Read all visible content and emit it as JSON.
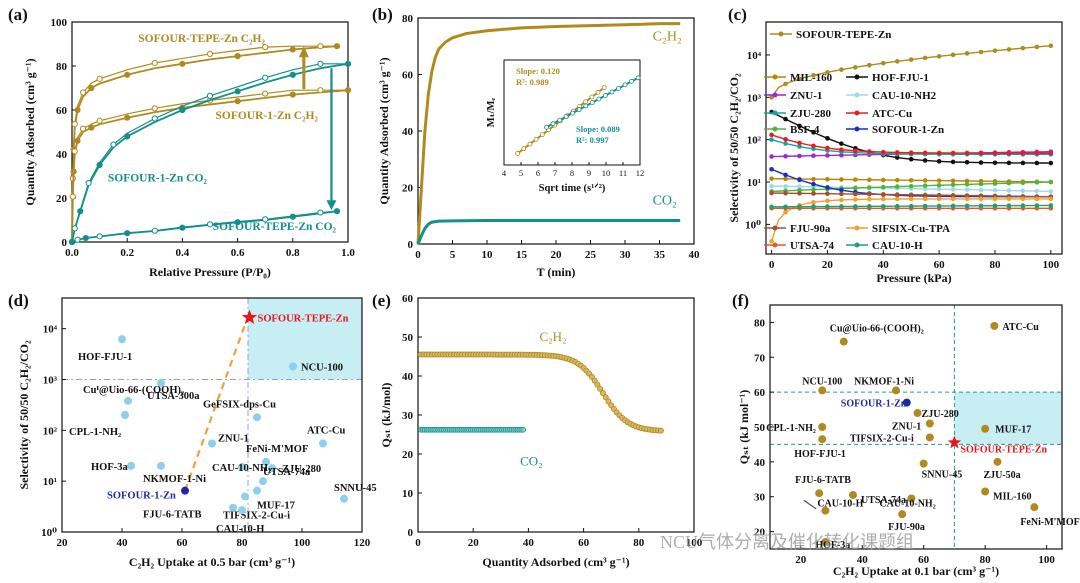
{
  "colors": {
    "gold": "#b08a1e",
    "teal": "#138f8c",
    "teal2": "#1a9c9a",
    "red": "#e8151d",
    "blue": "#1f2aa0",
    "light": "#8ccfee",
    "cyanfill": "#c6eef3"
  },
  "watermark": "NCU气体分离及催化转化课题组",
  "chart_data": [
    {
      "id": "a",
      "type": "line",
      "panel_label": "(a)",
      "xlabel": "Relative Pressure (P/P₀)",
      "ylabel": "Quantity Adsorbed (cm³ g⁻¹)",
      "xlim": [
        0,
        1
      ],
      "ylim": [
        0,
        100
      ],
      "xticks": [
        "0.0",
        "0.2",
        "0.4",
        "0.6",
        "0.8",
        "1.0"
      ],
      "yticks": [
        "0",
        "20",
        "40",
        "60",
        "80",
        "100"
      ],
      "series": [
        {
          "name": "SOFOUR-TEPE-Zn C2H2",
          "label": "SOFOUR-TEPE-Zn C₂H₂",
          "x": [
            0,
            0.003,
            0.006,
            0.01,
            0.02,
            0.04,
            0.07,
            0.1,
            0.2,
            0.3,
            0.4,
            0.5,
            0.6,
            0.7,
            0.8,
            0.9,
            0.96
          ],
          "y": [
            0,
            28,
            42,
            52,
            60,
            66,
            70,
            72,
            76,
            79,
            81,
            83,
            84.5,
            86,
            87.5,
            88.5,
            89
          ]
        },
        {
          "name": "SOFOUR-1-Zn C2H2",
          "label": "SOFOUR-1-Zn C₂H₂",
          "x": [
            0,
            0.003,
            0.006,
            0.01,
            0.02,
            0.04,
            0.07,
            0.1,
            0.2,
            0.3,
            0.4,
            0.5,
            0.6,
            0.7,
            0.8,
            0.9,
            1.0
          ],
          "y": [
            0,
            20,
            32,
            40,
            46,
            50,
            52,
            53.5,
            56.5,
            59,
            61,
            62.5,
            64,
            65.5,
            67,
            68,
            69
          ]
        },
        {
          "name": "SOFOUR-1-Zn CO2",
          "label": "SOFOUR-1-Zn CO₂",
          "x": [
            0,
            0.01,
            0.03,
            0.06,
            0.1,
            0.15,
            0.2,
            0.3,
            0.4,
            0.5,
            0.6,
            0.7,
            0.8,
            0.9,
            1.0
          ],
          "y": [
            0,
            6,
            14,
            26,
            35,
            43,
            48,
            54.5,
            60,
            64.5,
            68.5,
            72.5,
            76,
            79,
            81
          ]
        },
        {
          "name": "SOFOUR-TEPE-Zn CO2",
          "label": "SOFOUR-TEPE-Zn CO₂",
          "x": [
            0,
            0.02,
            0.05,
            0.1,
            0.2,
            0.3,
            0.4,
            0.5,
            0.6,
            0.7,
            0.8,
            0.9,
            0.96
          ],
          "y": [
            0,
            1,
            1.8,
            2.5,
            4,
            5,
            6.5,
            7.8,
            9,
            10,
            11.5,
            13,
            14
          ]
        }
      ]
    },
    {
      "id": "b",
      "type": "line",
      "panel_label": "(b)",
      "xlabel": "T (min)",
      "ylabel": "Quantity Adsorbed (cm³ g⁻¹)",
      "xlim": [
        0,
        40
      ],
      "ylim": [
        0,
        80
      ],
      "xticks": [
        "0",
        "5",
        "10",
        "15",
        "20",
        "25",
        "30",
        "35",
        "40"
      ],
      "yticks": [
        "0",
        "20",
        "40",
        "60",
        "80"
      ],
      "series": [
        {
          "name": "C2H2",
          "label": "C₂H₂",
          "x": [
            0,
            0.5,
            1,
            1.5,
            2,
            2.5,
            3,
            4,
            5,
            7,
            10,
            15,
            20,
            25,
            30,
            35,
            38
          ],
          "y": [
            0,
            20,
            40,
            53,
            61,
            66,
            69,
            71.5,
            73,
            74.5,
            75.5,
            76.5,
            77,
            77.3,
            77.6,
            78,
            78
          ]
        },
        {
          "name": "CO2",
          "label": "CO₂",
          "x": [
            0,
            0.5,
            1,
            1.5,
            2,
            3,
            5,
            10,
            20,
            30,
            38
          ],
          "y": [
            0,
            3,
            5.5,
            7,
            7.7,
            8.1,
            8.2,
            8.3,
            8.3,
            8.3,
            8.3
          ]
        }
      ],
      "inset": {
        "xlabel": "Sqrt time (s¹ᐟ²)",
        "ylabel": "Mₜ/Mₑ",
        "xlim": [
          4,
          12
        ],
        "ylim": [
          0,
          1
        ],
        "xticks": [
          "4",
          "5",
          "6",
          "7",
          "8",
          "9",
          "10",
          "11",
          "12"
        ],
        "fits": [
          {
            "name": "C2H2 fit",
            "slope_label": "Slope: 0.120",
            "r2_label": "R²: 0.989",
            "x": [
              4.8,
              10
            ],
            "y": [
              0.11,
              0.75
            ]
          },
          {
            "name": "CO2 fit",
            "slope_label": "Slope: 0.089",
            "r2_label": "R²: 0.997",
            "x": [
              6.5,
              12
            ],
            "y": [
              0.36,
              0.84
            ]
          }
        ]
      }
    },
    {
      "id": "c",
      "type": "line",
      "panel_label": "(c)",
      "xlabel": "Pressure (kPa)",
      "ylabel": "Selectivity of 50/50 C₂H₂/CO₂",
      "xlim": [
        0,
        100
      ],
      "ylim_log": [
        0.1,
        100000
      ],
      "scale": "log",
      "xticks": [
        "0",
        "20",
        "40",
        "60",
        "80",
        "100"
      ],
      "yticks": [
        "10⁰",
        "10¹",
        "10²",
        "10³",
        "10⁴"
      ],
      "series": [
        {
          "name": "SOFOUR-TEPE-Zn",
          "color": "#b08a1e",
          "start": 1000,
          "end": 16500,
          "shape": "rise"
        },
        {
          "name": "MIL-160",
          "color": "#b8860b",
          "start": 12,
          "end": 10,
          "shape": "flat"
        },
        {
          "name": "HOF-FJU-1",
          "color": "#111111",
          "start": 450,
          "end": 28,
          "shape": "decay"
        },
        {
          "name": "ZNU-1",
          "color": "#9b27d6",
          "start": 40,
          "end": 52,
          "shape": "flat"
        },
        {
          "name": "CAU-10-NH2",
          "color": "#9ed8ef",
          "start": 8,
          "end": 6,
          "shape": "flat"
        },
        {
          "name": "ZJU-280",
          "color": "#1ea0a0",
          "start": 100,
          "end": 45,
          "shape": "decay"
        },
        {
          "name": "ATC-Cu",
          "color": "#e61e1e",
          "start": 130,
          "end": 48,
          "shape": "decay"
        },
        {
          "name": "BSF-4",
          "color": "#52b33b",
          "start": 6,
          "end": 10,
          "shape": "flat"
        },
        {
          "name": "SOFOUR-1-Zn",
          "color": "#1a2fbf",
          "start": 20,
          "end": 4.5,
          "shape": "decay"
        },
        {
          "name": "FJU-90a",
          "color": "#a0522d",
          "start": 5.5,
          "end": 4.5,
          "shape": "flat"
        },
        {
          "name": "SIFSIX-Cu-TPA",
          "color": "#f0a030",
          "start": 0.4,
          "end": 4,
          "shape": "rise2"
        },
        {
          "name": "UTSA-74",
          "color": "#e45a2a",
          "start": 2.4,
          "end": 2.4,
          "shape": "flat"
        },
        {
          "name": "CAU-10-H",
          "color": "#20a070",
          "start": 2.6,
          "end": 2.8,
          "shape": "flat"
        }
      ]
    },
    {
      "id": "d",
      "type": "scatter",
      "panel_label": "(d)",
      "xlabel": "C₂H₂ Uptake at 0.5 bar (cm³ g⁻¹)",
      "ylabel": "Selectivity of  50/50 C₂H₂/CO₂",
      "xlim": [
        20,
        120
      ],
      "ylim_log": [
        1,
        40000
      ],
      "scale": "log",
      "xticks": [
        "20",
        "40",
        "60",
        "80",
        "100",
        "120"
      ],
      "yticks": [
        "10⁰",
        "10¹",
        "10²",
        "10³",
        "10⁴"
      ],
      "points": [
        {
          "name": "SOFOUR-TEPE-Zn",
          "x": 82.5,
          "y": 16500,
          "highlight": "star"
        },
        {
          "name": "HOF-FJU-1",
          "x": 40,
          "y": 6200
        },
        {
          "name": "NCU-100",
          "x": 97,
          "y": 1800
        },
        {
          "name": "UTSA-300a",
          "x": 53,
          "y": 850
        },
        {
          "name": "Cuᴵ@Uio-66-(COOH)₂",
          "x": 42,
          "y": 380
        },
        {
          "name": "CPL-1-NH₂",
          "x": 41,
          "y": 200
        },
        {
          "name": "GeFSIX-dps-Cu",
          "x": 85,
          "y": 180
        },
        {
          "name": "ZNU-1",
          "x": 70,
          "y": 55
        },
        {
          "name": "ATC-Cu",
          "x": 107,
          "y": 55
        },
        {
          "name": "FeNi-M'MOF",
          "x": 88,
          "y": 24
        },
        {
          "name": "ZJU-280",
          "x": 90,
          "y": 18
        },
        {
          "name": "CAU-10-NH₂",
          "x": 80,
          "y": 19
        },
        {
          "name": "HOF-3a",
          "x": 43,
          "y": 20
        },
        {
          "name": "NKMOF-1-Ni",
          "x": 53,
          "y": 20
        },
        {
          "name": "UTSA-74a",
          "x": 87,
          "y": 10
        },
        {
          "name": "MUF-17",
          "x": 85,
          "y": 6.5
        },
        {
          "name": "SNNU-45",
          "x": 114,
          "y": 4.5
        },
        {
          "name": "TIFSIX-2-Cu-i",
          "x": 81,
          "y": 5
        },
        {
          "name": "SOFOUR-1-Zn",
          "x": 61,
          "y": 6.5,
          "highlight": "navy"
        },
        {
          "name": "FJU-6-TATB",
          "x": 77,
          "y": 3
        },
        {
          "name": "CAU-10-H",
          "x": 80,
          "y": 2.7
        }
      ]
    },
    {
      "id": "e",
      "type": "scatter",
      "panel_label": "(e)",
      "xlabel": "Quantity Adsorbed (cm³ g⁻¹)",
      "ylabel": "Qₛₜ (kJ/mol)",
      "xlim": [
        0,
        100
      ],
      "ylim": [
        0,
        60
      ],
      "xticks": [
        "0",
        "20",
        "40",
        "60",
        "80",
        "100"
      ],
      "yticks": [
        "0",
        "10",
        "20",
        "30",
        "40",
        "50",
        "60"
      ],
      "series": [
        {
          "name": "C2H2",
          "label": "C₂H₂",
          "x0": 1,
          "x1": 88,
          "top": 45.5,
          "bottom": 25.8,
          "mid": 67,
          "width": 4.5
        },
        {
          "name": "CO2",
          "label": "CO₂",
          "x0": 1,
          "x1": 38.5,
          "y": 26.2
        }
      ]
    },
    {
      "id": "f",
      "type": "scatter",
      "panel_label": "(f)",
      "xlabel": "C₂H₂ Uptake at 0.1 bar (cm³ g⁻¹)",
      "ylabel": "Qₛₜ (kJ mol⁻¹)",
      "xlim": [
        10,
        105
      ],
      "ylim": [
        15,
        85
      ],
      "xticks": [
        "20",
        "40",
        "60",
        "80",
        "100"
      ],
      "yticks": [
        "20",
        "30",
        "40",
        "50",
        "60",
        "70",
        "80"
      ],
      "points": [
        {
          "name": "ATC-Cu",
          "x": 83,
          "y": 79
        },
        {
          "name": "Cu@Uio-66-(COOH)₂",
          "x": 34,
          "y": 74.5
        },
        {
          "name": "NCU-100",
          "x": 27,
          "y": 60.5
        },
        {
          "name": "NKMOF-1-Ni",
          "x": 51,
          "y": 60.5
        },
        {
          "name": "SOFOUR-1-Zn",
          "x": 54.5,
          "y": 57,
          "highlight": "navy"
        },
        {
          "name": "ZJU-280",
          "x": 58,
          "y": 54
        },
        {
          "name": "ZNU-1",
          "x": 62,
          "y": 51
        },
        {
          "name": "CPL-1-NH₂",
          "x": 27,
          "y": 50
        },
        {
          "name": "MUF-17",
          "x": 80,
          "y": 49.5
        },
        {
          "name": "TIFSIX-2-Cu-i",
          "x": 62,
          "y": 47
        },
        {
          "name": "HOF-FJU-1",
          "x": 27,
          "y": 46.5
        },
        {
          "name": "SOFOUR-TEPE-Zn",
          "x": 70,
          "y": 45.5,
          "highlight": "star"
        },
        {
          "name": "SNNU-45",
          "x": 60,
          "y": 39.5
        },
        {
          "name": "ZJU-50a",
          "x": 84,
          "y": 40
        },
        {
          "name": "FJU-6-TATB",
          "x": 26,
          "y": 31
        },
        {
          "name": "UTSA-74a",
          "x": 37,
          "y": 30.5
        },
        {
          "name": "CAU-10-NH₂",
          "x": 56,
          "y": 29.5
        },
        {
          "name": "MIL-160",
          "x": 80,
          "y": 31.5
        },
        {
          "name": "CAU-10-H",
          "x": 28,
          "y": 26
        },
        {
          "name": "FJU-90a",
          "x": 53,
          "y": 25
        },
        {
          "name": "FeNi-M'MOF",
          "x": 96,
          "y": 27
        },
        {
          "name": "HOF-3a",
          "x": 28,
          "y": 17
        }
      ]
    }
  ]
}
